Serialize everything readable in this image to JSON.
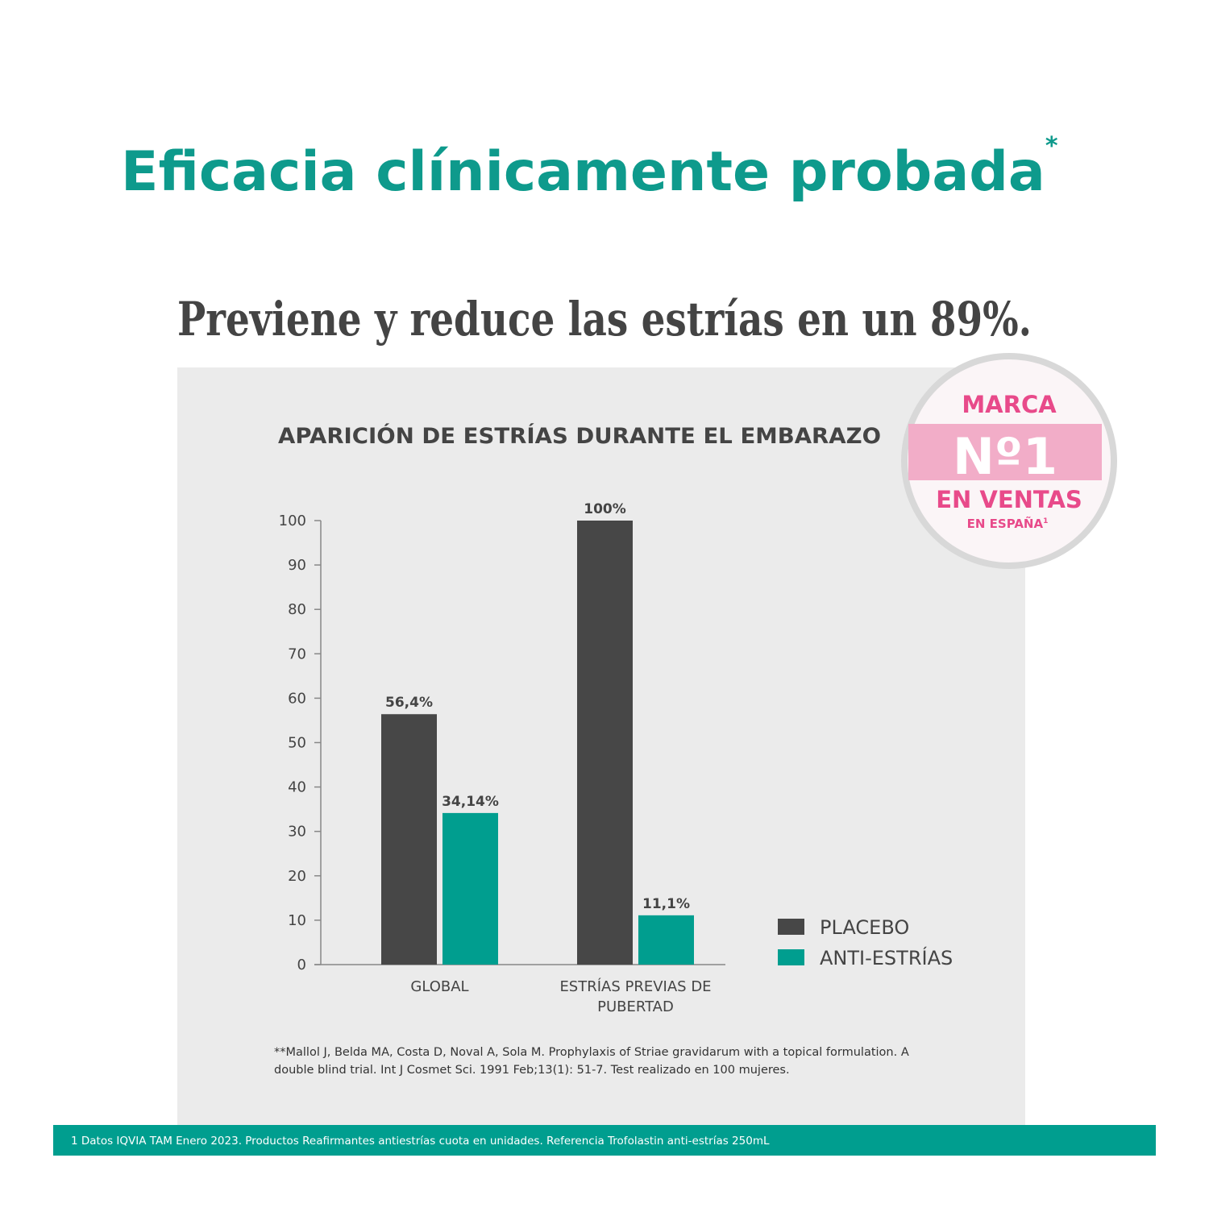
{
  "header": {
    "title": "Eficacia clínicamente probada",
    "title_mark": "*",
    "subtitle": "Previene y reduce las estrías en un 89%."
  },
  "chart_data": {
    "type": "bar",
    "title": "APARICIÓN DE ESTRÍAS DURANTE EL EMBARAZO",
    "categories": [
      "GLOBAL",
      "ESTRÍAS PREVIAS DE PUBERTAD"
    ],
    "series": [
      {
        "name": "PLACEBO",
        "color": "#474747",
        "values": [
          56.4,
          100
        ],
        "value_labels": [
          "56,4%",
          "100%"
        ]
      },
      {
        "name": "ANTI-ESTRÍAS",
        "color": "#009e8f",
        "values": [
          34.14,
          11.1
        ],
        "value_labels": [
          "34,14%",
          "11,1%"
        ]
      }
    ],
    "ylim": [
      0,
      100
    ],
    "yticks": [
      0,
      10,
      20,
      30,
      40,
      50,
      60,
      70,
      80,
      90,
      100
    ],
    "grid": false,
    "legend": "right"
  },
  "badge": {
    "line1": "MARCA",
    "line2": "Nº1",
    "line3": "EN VENTAS",
    "line4": "EN ESPAÑA",
    "line4_mark": "1"
  },
  "footnote": "**Mallol J, Belda MA, Costa D, Noval A, Sola M. Prophylaxis of Striae gravidarum with a topical formulation. A double blind trial. Int J Cosmet Sci. 1991 Feb;13(1): 51-7. Test realizado en 100 mujeres.",
  "footer": "1 Datos IQVIA TAM Enero 2023. Productos Reafirmantes antiestrías cuota en unidades. Referencia Trofolastin anti-estrías 250mL"
}
